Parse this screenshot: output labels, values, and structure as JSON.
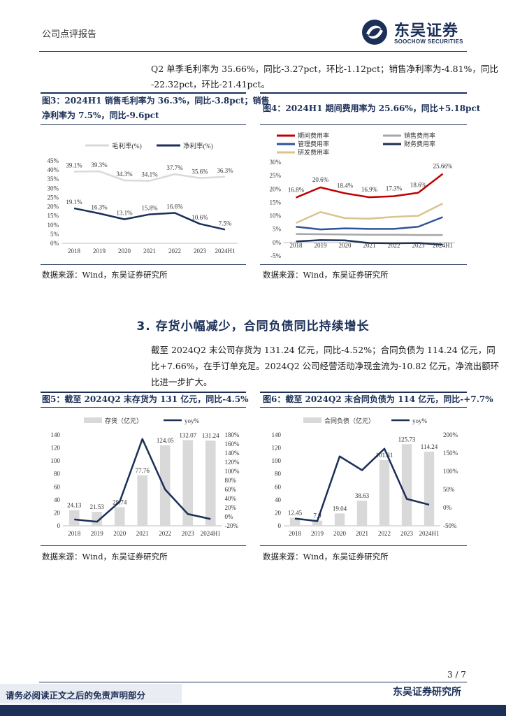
{
  "header": {
    "doc_type": "公司点评报告",
    "logo_cn": "东吴证券",
    "logo_en": "SOOCHOW SECURITIES"
  },
  "intro": {
    "line1": "Q2 单季毛利率为 35.66%，同比-3.27pct，环比-1.12pct；销售净利率为-4.81%，同比",
    "line2": "-22.32pct，环比-21.41pct。"
  },
  "fig3": {
    "caption_line1": "图3：2024H1 销售毛利率为 36.3%，同比-3.8pct；销售",
    "caption_line2": "净利率为 7.5%，同比-9.6pct",
    "source": "数据来源：Wind，东吴证券研究所"
  },
  "fig4": {
    "caption": "图4：2024H1 期间费用率为 25.66%，同比+5.18pct",
    "source": "数据来源：Wind，东吴证券研究所"
  },
  "section3": {
    "title": "3.  存货小幅减少，合同负债同比持续增长",
    "line1": "截至 2024Q2 末公司存货为 131.24 亿元，同比-4.52%；合同负债为 114.24 亿元，同",
    "line2": "比+7.66%，在手订单充足。2024Q2 公司经营活动净现金流为-10.82 亿元，净流出额环",
    "line3": "比进一步扩大。"
  },
  "fig5": {
    "caption": "图5：截至 2024Q2 末存货为 131 亿元，同比-4.5%",
    "source": "数据来源：Wind，东吴证券研究所"
  },
  "fig6": {
    "caption": "图6：截至 2024Q2 末合同负债为 114 亿元，同比-+7.7%",
    "source": "数据来源：Wind，东吴证券研究所"
  },
  "footer": {
    "page": "3 / 7",
    "org": "东吴证券研究所",
    "disclaimer": "请务必阅读正文之后的免责声明部分"
  },
  "chart_data": [
    {
      "id": "fig3",
      "type": "line",
      "categories": [
        "2018",
        "2019",
        "2020",
        "2021",
        "2022",
        "2023",
        "2024H1"
      ],
      "series": [
        {
          "name": "毛利率(%)",
          "color": "#d9d9d9",
          "values": [
            39.1,
            39.3,
            34.3,
            34.1,
            37.7,
            35.6,
            36.3
          ],
          "labels": [
            "39.1%",
            "39.3%",
            "34.3%",
            "34.1%",
            "37.7%",
            "35.6%",
            "36.3%"
          ]
        },
        {
          "name": "净利率(%)",
          "color": "#1b2f57",
          "values": [
            19.1,
            16.3,
            13.1,
            15.8,
            16.6,
            10.6,
            7.5
          ],
          "labels": [
            "19.1%",
            "16.3%",
            "13.1%",
            "15.8%",
            "16.6%",
            "10.6%",
            "7.5%"
          ]
        }
      ],
      "yticks": [
        "0%",
        "5%",
        "10%",
        "15%",
        "20%",
        "25%",
        "30%",
        "35%",
        "40%",
        "45%"
      ],
      "ylim": [
        0,
        45
      ]
    },
    {
      "id": "fig4",
      "type": "line",
      "categories": [
        "2018",
        "2019",
        "2020",
        "2021",
        "2022",
        "2023",
        "2024H1"
      ],
      "series": [
        {
          "name": "期间费用率",
          "color": "#c00000",
          "values": [
            16.8,
            20.6,
            18.4,
            16.9,
            17.3,
            18.6,
            25.66
          ],
          "labels": [
            "16.8%",
            "20.6%",
            "18.4%",
            "16.9%",
            "17.3%",
            "18.6%",
            "25.66%"
          ]
        },
        {
          "name": "销售费用率",
          "color": "#a6a6a6",
          "values": [
            3.2,
            3.1,
            3.0,
            2.9,
            2.9,
            2.8,
            2.8
          ]
        },
        {
          "name": "管理费用率",
          "color": "#2e5597",
          "values": [
            5.9,
            4.9,
            5.3,
            5.1,
            5.1,
            5.9,
            9.5
          ]
        },
        {
          "name": "财务费用率",
          "color": "#1b2f57",
          "values": [
            0.4,
            0.9,
            0.8,
            -0.2,
            -0.3,
            -0.2,
            -0.8
          ]
        },
        {
          "name": "研发费用率",
          "color": "#d9c48f",
          "values": [
            7.3,
            11.4,
            9.1,
            8.9,
            9.6,
            10.0,
            14.6
          ]
        }
      ],
      "yticks": [
        "-5%",
        "0%",
        "5%",
        "10%",
        "15%",
        "20%",
        "25%",
        "30%"
      ],
      "ylim": [
        -5,
        30
      ]
    },
    {
      "id": "fig5",
      "type": "bar+line",
      "categories": [
        "2018",
        "2019",
        "2020",
        "2021",
        "2022",
        "2023",
        "2024H1"
      ],
      "bar": {
        "name": "存货（亿元）",
        "color": "#d9d9d9",
        "values": [
          24.13,
          21.53,
          28.74,
          77.76,
          124.05,
          132.07,
          131.24
        ],
        "labels": [
          "24.13",
          "21.53",
          "28.74",
          "77.76",
          "124.05",
          "132.07",
          "131.24"
        ]
      },
      "line": {
        "name": "yoy%",
        "color": "#1b2f57",
        "values": [
          -6,
          -11,
          33,
          171,
          60,
          6,
          -5
        ]
      },
      "yticks_left": [
        "0",
        "20",
        "40",
        "60",
        "80",
        "100",
        "120",
        "140"
      ],
      "ylim_left": [
        0,
        140
      ],
      "yticks_right": [
        "-20%",
        "0%",
        "20%",
        "40%",
        "60%",
        "80%",
        "100%",
        "120%",
        "140%",
        "160%",
        "180%"
      ],
      "ylim_right": [
        -20,
        180
      ]
    },
    {
      "id": "fig6",
      "type": "bar+line",
      "categories": [
        "2018",
        "2019",
        "2020",
        "2021",
        "2022",
        "2023",
        "2024H1"
      ],
      "bar": {
        "name": "合同负债（亿元）",
        "color": "#d9d9d9",
        "values": [
          12.45,
          7.9,
          19.04,
          38.63,
          101.31,
          125.73,
          114.24
        ],
        "labels": [
          "12.45",
          "7.9",
          "19.04",
          "38.63",
          "101.31",
          "125.73",
          "114.24"
        ]
      },
      "line": {
        "name": "yoy%",
        "color": "#1b2f57",
        "values": [
          -30,
          -37,
          141,
          103,
          162,
          24,
          8
        ]
      },
      "yticks_left": [
        "0",
        "20",
        "40",
        "60",
        "80",
        "100",
        "120",
        "140"
      ],
      "ylim_left": [
        0,
        140
      ],
      "yticks_right": [
        "-50%",
        "0%",
        "50%",
        "100%",
        "150%",
        "200%"
      ],
      "ylim_right": [
        -50,
        200
      ]
    }
  ]
}
